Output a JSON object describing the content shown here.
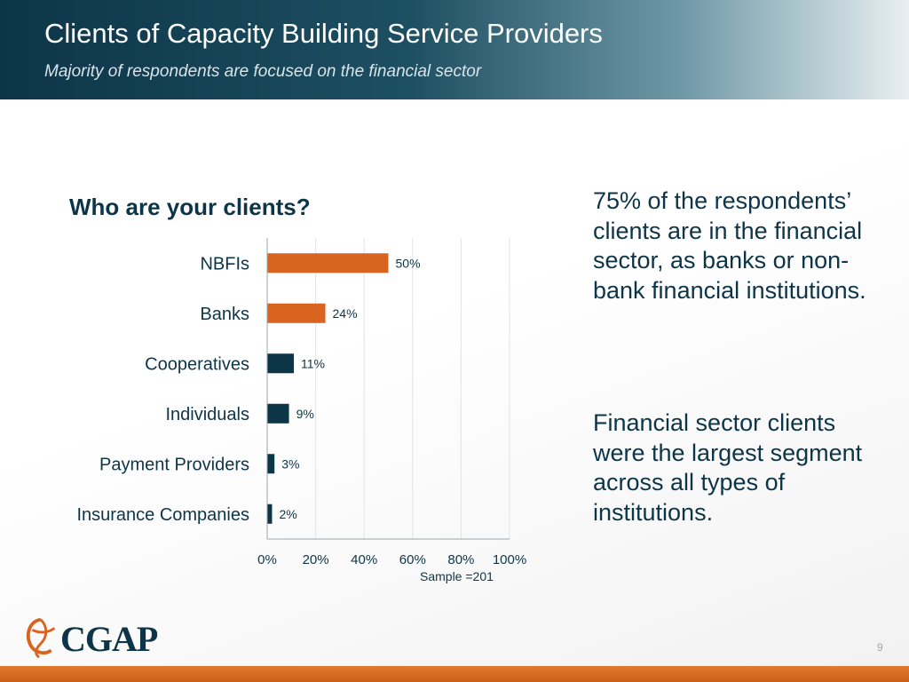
{
  "header": {
    "title": "Clients of Capacity Building Service Providers",
    "subtitle": "Majority of respondents are focused on the financial sector"
  },
  "chart_question": "Who are your clients?",
  "chart_data": {
    "type": "bar",
    "orientation": "horizontal",
    "title": "Who are your clients?",
    "categories": [
      "NBFIs",
      "Banks",
      "Cooperatives",
      "Individuals",
      "Payment Providers",
      "Insurance Companies"
    ],
    "values": [
      50,
      24,
      11,
      9,
      3,
      2
    ],
    "value_labels": [
      "50%",
      "24%",
      "11%",
      "9%",
      "3%",
      "2%"
    ],
    "bar_colors": [
      "#d9641f",
      "#d9641f",
      "#0d3548",
      "#0d3548",
      "#0d3548",
      "#0d3548"
    ],
    "xlim": [
      0,
      100
    ],
    "x_ticks": [
      "0%",
      "20%",
      "40%",
      "60%",
      "80%",
      "100%"
    ],
    "grid": true,
    "note": "Sample =201"
  },
  "side_text": [
    "75% of the respondents’ clients are in the financial sector, as banks or non-bank financial institutions.",
    "Financial sector clients were the largest segment across all types of institutions."
  ],
  "logo": {
    "text": "CGAP",
    "icon": "cgap-swirl-logo"
  },
  "page_number": "9",
  "colors": {
    "header_dark": "#0d3548",
    "accent_orange": "#d9641f",
    "text": "#0d3548"
  }
}
